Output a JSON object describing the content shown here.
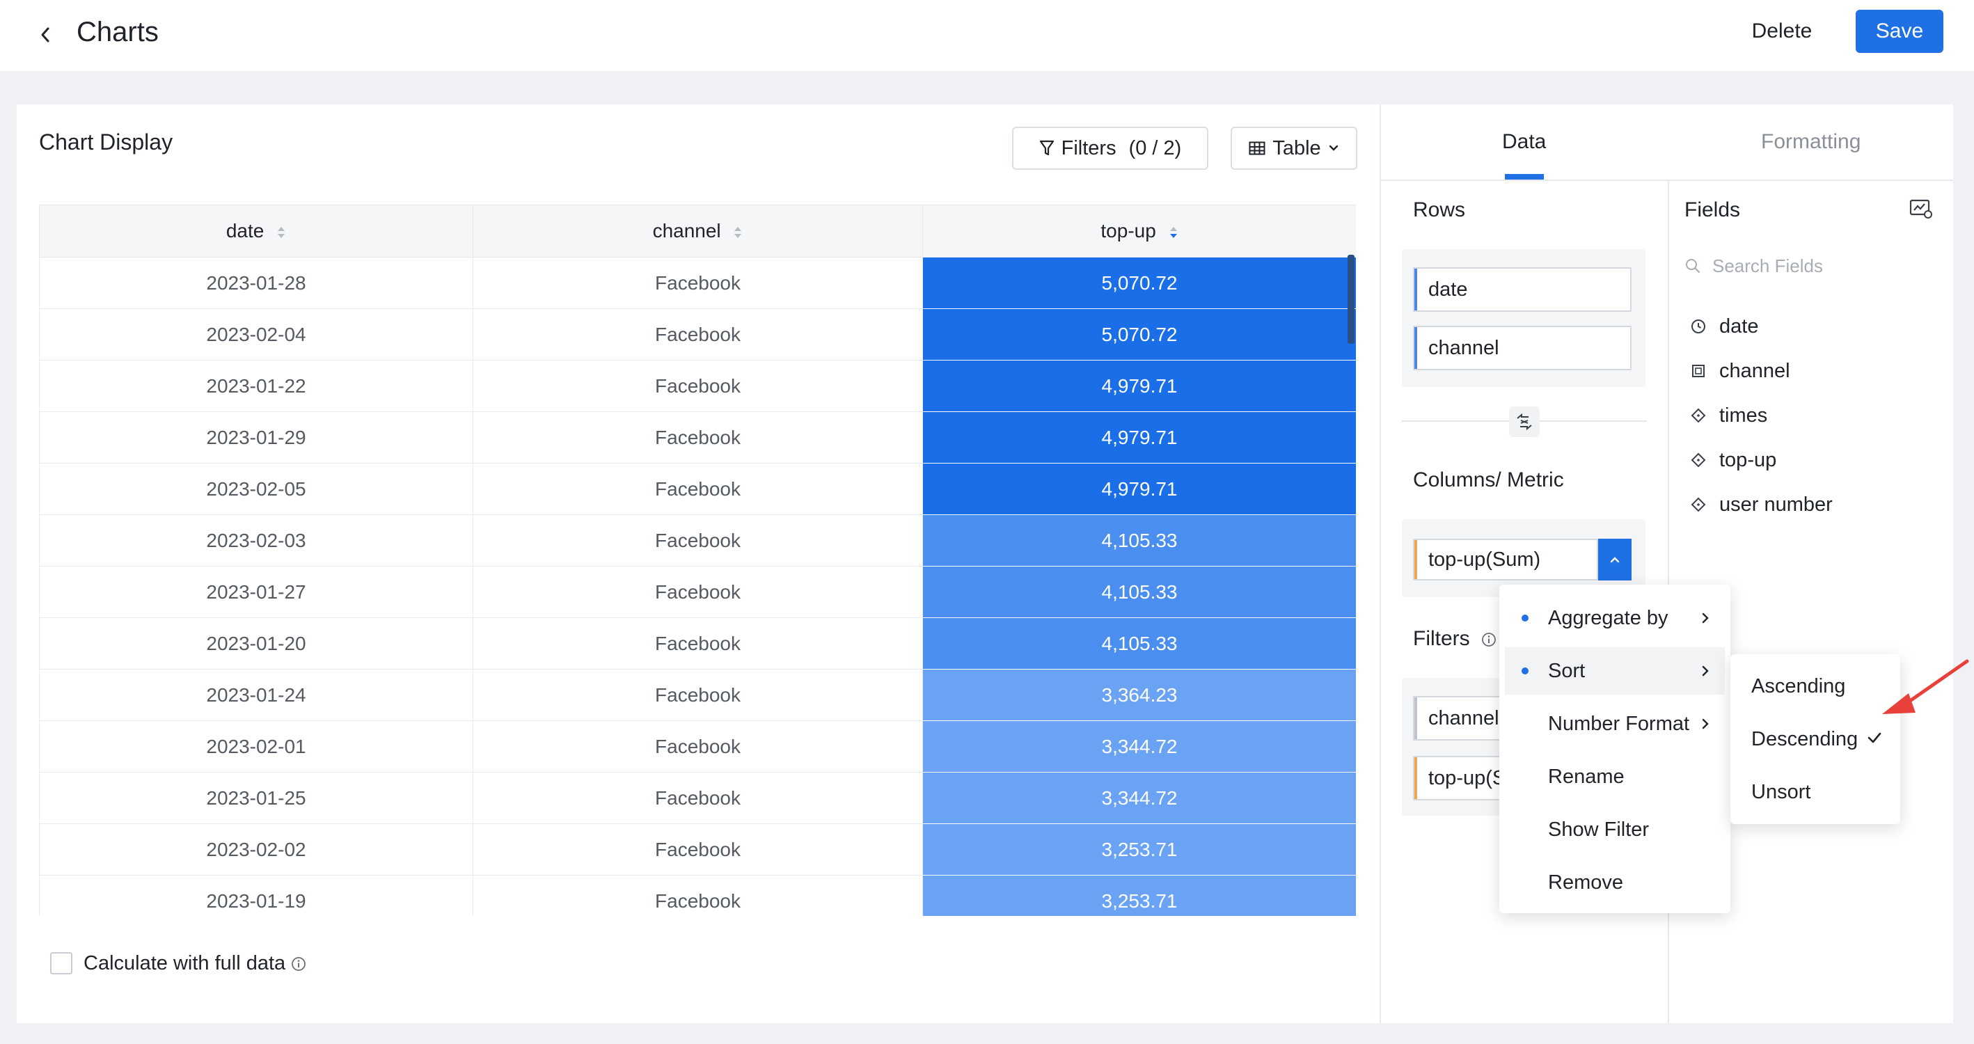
{
  "header": {
    "title": "Charts",
    "delete_label": "Delete",
    "save_label": "Save"
  },
  "chart_display": {
    "title": "Chart Display",
    "filters_label": "Filters",
    "filters_count": "(0 / 2)",
    "view_label": "Table",
    "columns": [
      "date",
      "channel",
      "top-up"
    ],
    "rows": [
      {
        "date": "2023-01-28",
        "channel": "Facebook",
        "top_up": "5,070.72",
        "level": 3
      },
      {
        "date": "2023-02-04",
        "channel": "Facebook",
        "top_up": "5,070.72",
        "level": 3
      },
      {
        "date": "2023-01-22",
        "channel": "Facebook",
        "top_up": "4,979.71",
        "level": 3
      },
      {
        "date": "2023-01-29",
        "channel": "Facebook",
        "top_up": "4,979.71",
        "level": 3
      },
      {
        "date": "2023-02-05",
        "channel": "Facebook",
        "top_up": "4,979.71",
        "level": 3
      },
      {
        "date": "2023-02-03",
        "channel": "Facebook",
        "top_up": "4,105.33",
        "level": 2
      },
      {
        "date": "2023-01-27",
        "channel": "Facebook",
        "top_up": "4,105.33",
        "level": 2
      },
      {
        "date": "2023-01-20",
        "channel": "Facebook",
        "top_up": "4,105.33",
        "level": 2
      },
      {
        "date": "2023-01-24",
        "channel": "Facebook",
        "top_up": "3,364.23",
        "level": 1
      },
      {
        "date": "2023-02-01",
        "channel": "Facebook",
        "top_up": "3,344.72",
        "level": 1
      },
      {
        "date": "2023-01-25",
        "channel": "Facebook",
        "top_up": "3,344.72",
        "level": 1
      },
      {
        "date": "2023-02-02",
        "channel": "Facebook",
        "top_up": "3,253.71",
        "level": 1
      },
      {
        "date": "2023-01-19",
        "channel": "Facebook",
        "top_up": "3,253.71",
        "level": 1
      }
    ],
    "level_colors": {
      "3": "#1a6ee8",
      "2": "#4a8ff0",
      "1": "#6aa3f4"
    },
    "calc_full_label": "Calculate with full data"
  },
  "right_panel": {
    "tabs": [
      "Data",
      "Formatting"
    ],
    "rows_title": "Rows",
    "rows_fields": [
      "date",
      "channel"
    ],
    "columns_title": "Columns/ Metric",
    "columns_fields": [
      "top-up(Sum)"
    ],
    "filters_title": "Filters",
    "filters_fields": [
      "channel",
      "top-up(S"
    ],
    "fields_title": "Fields",
    "search_placeholder": "Search Fields",
    "fields": [
      {
        "name": "date",
        "icon": "clock-icon"
      },
      {
        "name": "channel",
        "icon": "text-field-icon"
      },
      {
        "name": "times",
        "icon": "diamond-icon"
      },
      {
        "name": "top-up",
        "icon": "diamond-icon"
      },
      {
        "name": "user number",
        "icon": "diamond-icon"
      }
    ]
  },
  "context_menu": {
    "items": [
      "Aggregate by",
      "Sort",
      "Number Format",
      "Rename",
      "Show Filter",
      "Remove"
    ],
    "sort_options": [
      "Ascending",
      "Descending",
      "Unsort"
    ],
    "selected_sort": "Descending"
  },
  "colors": {
    "accent": "#1f6fe5",
    "annotation_arrow": "#e8413b"
  }
}
